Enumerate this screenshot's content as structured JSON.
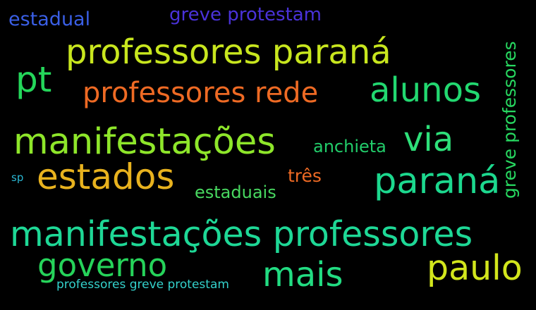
{
  "words": [
    {
      "id": "estadual",
      "text": "estadual",
      "color": "#3a5fe6"
    },
    {
      "id": "greve-protestam",
      "text": "greve protestam",
      "color": "#4a32d9"
    },
    {
      "id": "professores-parana",
      "text": "professores paraná",
      "color": "#c8e61e"
    },
    {
      "id": "pt",
      "text": "pt",
      "color": "#24d65a"
    },
    {
      "id": "professores-rede",
      "text": "professores rede",
      "color": "#ee6a24"
    },
    {
      "id": "alunos",
      "text": "alunos",
      "color": "#22d870"
    },
    {
      "id": "greve-professores",
      "text": "greve professores",
      "color": "#27d860"
    },
    {
      "id": "manifestacoes",
      "text": "manifestações",
      "color": "#8ee62a"
    },
    {
      "id": "anchieta",
      "text": "anchieta",
      "color": "#22cc6a"
    },
    {
      "id": "via",
      "text": "via",
      "color": "#2ee07a"
    },
    {
      "id": "sp",
      "text": "sp",
      "color": "#2ab8d4"
    },
    {
      "id": "estados",
      "text": "estados",
      "color": "#e8b21e"
    },
    {
      "id": "tres",
      "text": "três",
      "color": "#ee6a24"
    },
    {
      "id": "estaduais",
      "text": "estaduais",
      "color": "#48d860"
    },
    {
      "id": "parana",
      "text": "paraná",
      "color": "#1cd88e"
    },
    {
      "id": "manifestacoes-professores",
      "text": "manifestações professores",
      "color": "#1ed896"
    },
    {
      "id": "governo",
      "text": "governo",
      "color": "#26d35a"
    },
    {
      "id": "mais",
      "text": "mais",
      "color": "#22dc82"
    },
    {
      "id": "paulo",
      "text": "paulo",
      "color": "#d2e61c"
    },
    {
      "id": "professores-greve-protestam",
      "text": "professores greve protestam",
      "color": "#34d2cc"
    }
  ]
}
